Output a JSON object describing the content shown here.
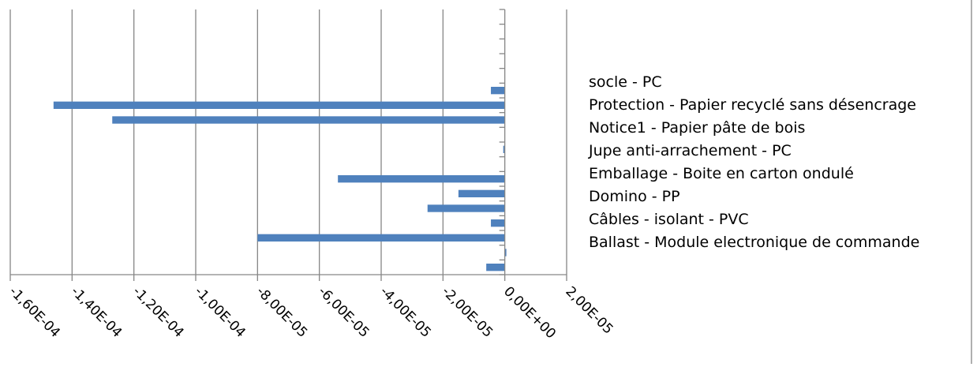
{
  "chart_data": {
    "type": "bar",
    "orientation": "horizontal",
    "series": [
      {
        "values": [
          -6e-06,
          5e-07,
          -8e-05,
          -4.5e-06,
          -2.5e-05,
          -1.5e-05,
          -5.4e-05,
          0,
          -5e-07,
          0,
          -0.000127,
          -0.000146,
          -4.5e-06,
          0,
          0,
          0,
          0,
          0
        ]
      }
    ],
    "categories": [
      "Ballast - Module electronique de commande",
      "",
      "Câbles - isolant - PVC",
      "",
      "Domino - PP",
      "",
      "Emballage - Boite en carton ondulé",
      "",
      "Jupe anti-arrachement - PC",
      "",
      "Notice1 - Papier pâte de bois",
      "",
      "Protection - Papier recyclé sans désencrage",
      "",
      "socle - PC",
      "",
      "",
      ""
    ],
    "legend": [
      "socle - PC",
      "Protection - Papier recyclé sans désencrage",
      "Notice1 - Papier pâte de bois",
      "Jupe anti-arrachement - PC",
      "Emballage - Boite en carton ondulé",
      "Domino - PP",
      "Câbles - isolant - PVC",
      "Ballast - Module electronique de commande"
    ],
    "xlim": [
      -0.00016,
      2e-05
    ],
    "x_ticks": [
      -0.00016,
      -0.00014,
      -0.00012,
      -0.0001,
      -8e-05,
      -6e-05,
      -4e-05,
      -2e-05,
      0,
      2e-05
    ],
    "x_tick_labels": [
      "-1,60E-04",
      "-1,40E-04",
      "-1,20E-04",
      "-1,00E-04",
      "-8,00E-05",
      "-6,00E-05",
      "-4,00E-05",
      "-2,00E-05",
      "0,00E+00",
      "2,00E-05"
    ],
    "grid": "vertical",
    "legend_position": "right",
    "bar_color": "#4f81bd",
    "title": "",
    "xlabel": "",
    "ylabel": ""
  }
}
